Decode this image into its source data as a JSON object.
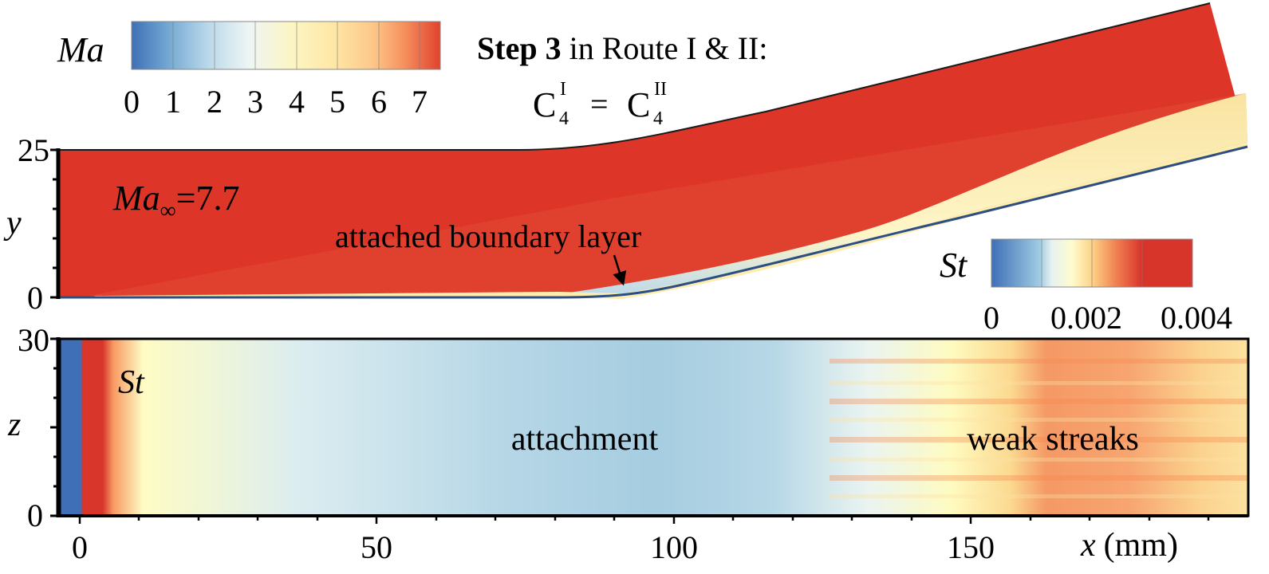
{
  "ma_colorbar": {
    "label": "Ma",
    "ticks": [
      "0",
      "1",
      "2",
      "3",
      "4",
      "5",
      "6",
      "7"
    ],
    "colors": [
      "#3f6fb6",
      "#74a9d3",
      "#bcd9ea",
      "#eef5f4",
      "#fcf5c3",
      "#fee8a6",
      "#fdc88a",
      "#f6925e",
      "#e0432f"
    ]
  },
  "st_colorbar": {
    "label": "St",
    "ticks": [
      "0",
      "0.002",
      "0.004"
    ],
    "colors": [
      "#3f6fb6",
      "#9fcbe3",
      "#fefcd0",
      "#fdd387",
      "#f08152",
      "#d7342a"
    ]
  },
  "header": {
    "step_bold": "Step 3",
    "step_rest": " in Route I & II:",
    "equation_base": "C",
    "sup1": "I",
    "sub1": "4",
    "eq": "=",
    "sup2": "II",
    "sub2": "4"
  },
  "top_panel": {
    "y_axis_label": "y",
    "y_ticks": [
      "25",
      "0"
    ],
    "freestream_sym": "Ma",
    "freestream_sub": "∞",
    "freestream_value": "=7.7",
    "annotation": "attached boundary layer",
    "flow_color": "#dd3527",
    "layer_color": "#f9e3a1"
  },
  "bottom_panel": {
    "field_label": "St",
    "z_axis_label": "z",
    "z_ticks": [
      "30",
      "0"
    ],
    "x_ticks": [
      "0",
      "50",
      "100",
      "150"
    ],
    "x_axis_label": "x",
    "x_unit": "(mm)",
    "label_attachment": "attachment",
    "label_streaks": "weak streaks"
  }
}
